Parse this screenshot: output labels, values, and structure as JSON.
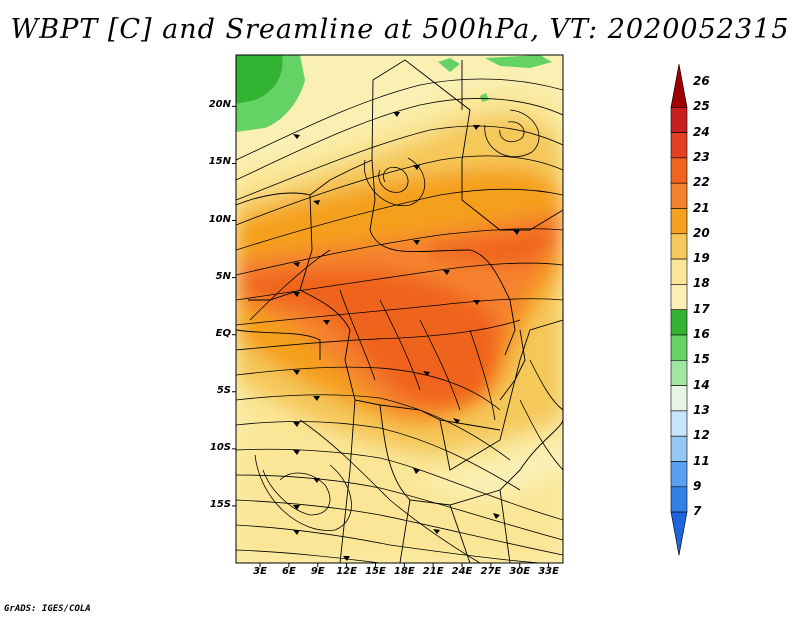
{
  "title": "WBPT [C] and Sreamline at 500hPa, VT: 2020052315",
  "footer": "GrADS: IGES/COLA",
  "map": {
    "lat_labels": [
      "20N",
      "15N",
      "10N",
      "5N",
      "EQ",
      "5S",
      "10S",
      "15S"
    ],
    "lat_values": [
      20,
      15,
      10,
      5,
      0,
      -5,
      -10,
      -15
    ],
    "lon_labels": [
      "3E",
      "6E",
      "9E",
      "12E",
      "15E",
      "18E",
      "21E",
      "24E",
      "27E",
      "30E",
      "33E"
    ],
    "lon_values": [
      3,
      6,
      9,
      12,
      15,
      18,
      21,
      24,
      27,
      30,
      33
    ],
    "lat_range": [
      -20,
      24.5
    ],
    "lon_range": [
      0.5,
      34.5
    ]
  },
  "colorbar": {
    "labels": [
      "26",
      "25",
      "24",
      "23",
      "22",
      "21",
      "20",
      "19",
      "18",
      "17",
      "16",
      "15",
      "14",
      "13",
      "12",
      "11",
      "9",
      "7"
    ],
    "colors": [
      "#a00000",
      "#c81e1e",
      "#e1411e",
      "#f0641e",
      "#f5822d",
      "#f5a01e",
      "#f5c85a",
      "#fae696",
      "#faf0b4",
      "#32b432",
      "#64d264",
      "#a0e6a0",
      "#e6f5e6",
      "#c8e6fa",
      "#96c8f5",
      "#5aa0f0",
      "#3282e6",
      "#1e64dc"
    ]
  }
}
